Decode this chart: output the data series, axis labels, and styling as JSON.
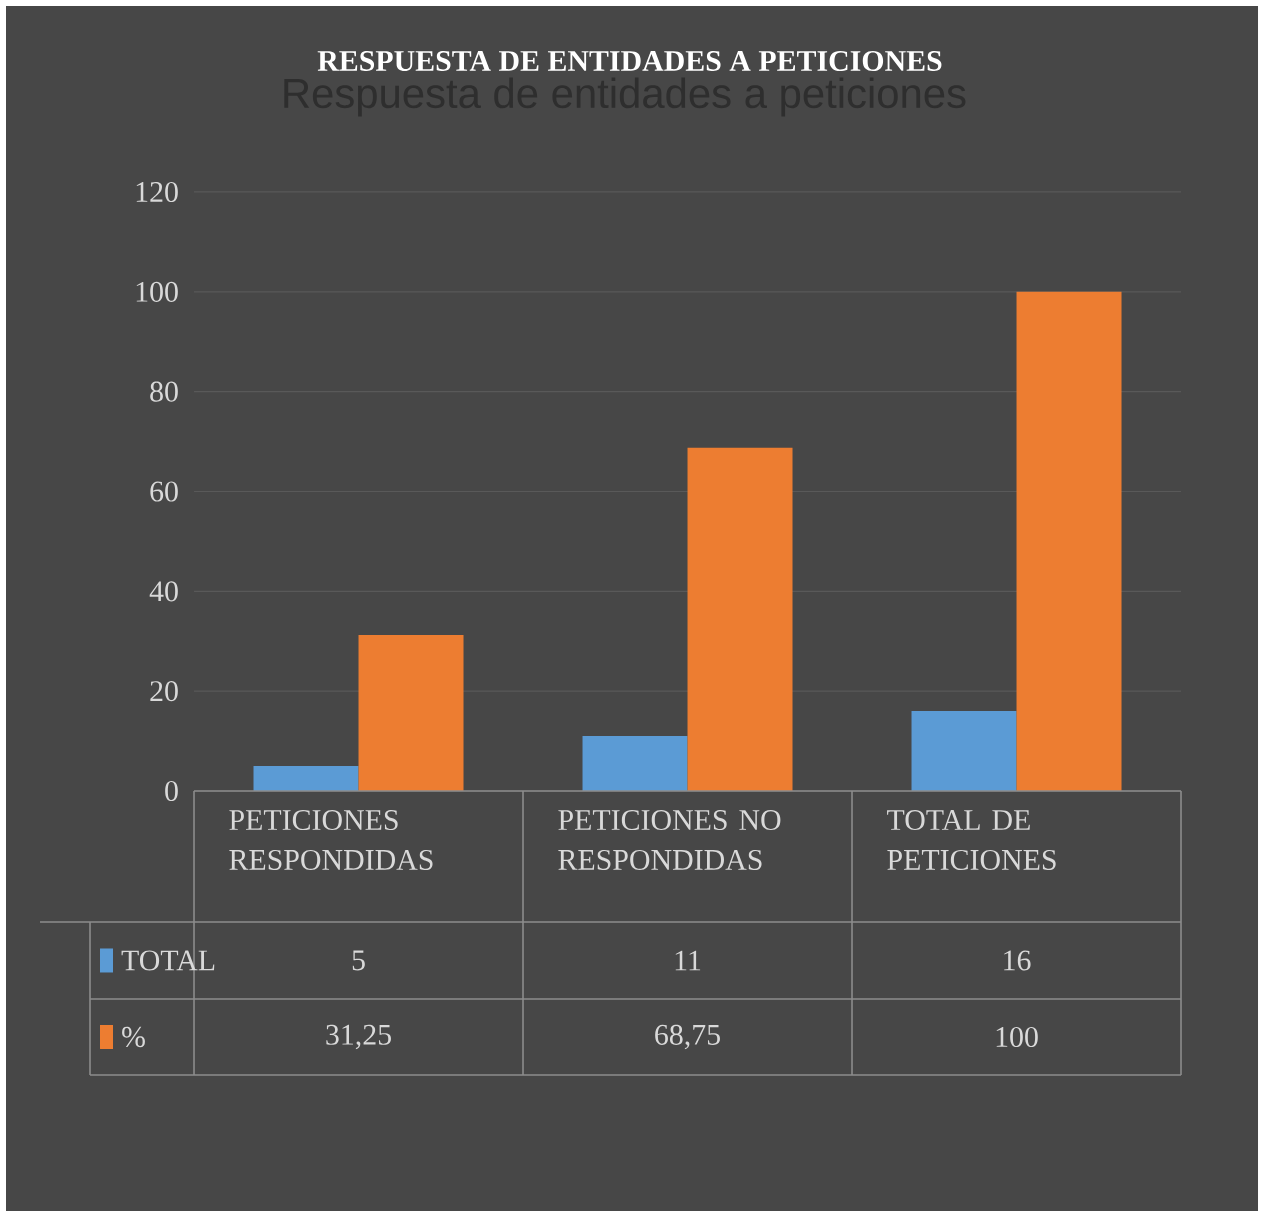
{
  "chart_data": {
    "type": "bar",
    "title": "RESPUESTA DE ENTIDADES A PETICIONES",
    "subtitle": "Respuesta de entidades a peticiones",
    "categories": [
      "PETICIONES RESPONDIDAS",
      "PETICIONES NO RESPONDIDAS",
      "TOTAL DE PETICIONES"
    ],
    "series": [
      {
        "name": "TOTAL",
        "color": "#5b9bd5",
        "values": [
          5,
          11,
          16
        ],
        "value_labels": [
          "5",
          "11",
          "16"
        ]
      },
      {
        "name": "%",
        "color": "#ed7d31",
        "values": [
          31.25,
          68.75,
          100
        ],
        "value_labels": [
          "31,25",
          "68,75",
          "100"
        ]
      }
    ],
    "ylim": [
      0,
      120
    ],
    "yticks": [
      0,
      20,
      40,
      60,
      80,
      100,
      120
    ],
    "grid": "y",
    "legend": "bottom"
  }
}
